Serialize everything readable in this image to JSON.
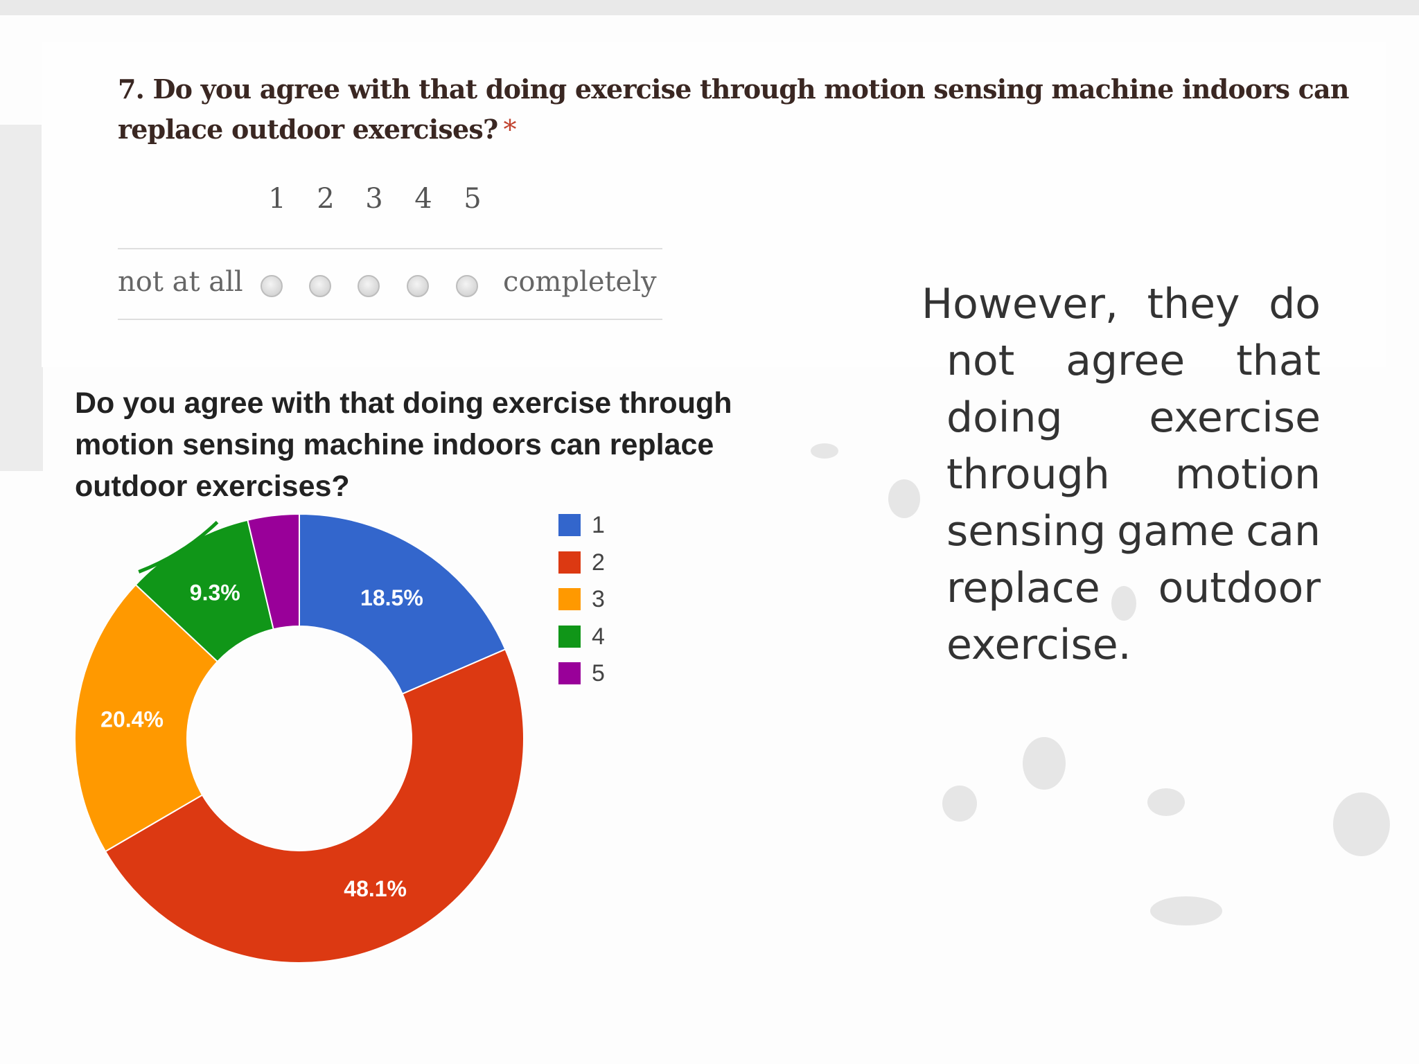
{
  "form": {
    "question": "7. Do you agree with that doing exercise through motion sensing machine indoors can replace outdoor exercises?",
    "required_marker": "*",
    "scale_numbers": [
      "1",
      "2",
      "3",
      "4",
      "5"
    ],
    "low_label": "not at all",
    "high_label": "completely"
  },
  "chart_data": {
    "type": "pie",
    "title": "Do you agree with that doing exercise through motion sensing machine indoors can replace outdoor exercises?",
    "legend_position": "right",
    "categories": [
      "1",
      "2",
      "3",
      "4",
      "5"
    ],
    "values": [
      18.5,
      48.1,
      20.4,
      9.3,
      3.7
    ],
    "value_labels": [
      "18.5%",
      "48.1%",
      "20.4%",
      "9.3%",
      ""
    ],
    "colors": [
      "#3366cc",
      "#dc3912",
      "#ff9900",
      "#109618",
      "#990099"
    ],
    "donut": true
  },
  "comment": {
    "lines": [
      [
        "However,",
        "they",
        "do"
      ],
      [
        "not",
        "agree",
        "that"
      ],
      [
        "doing",
        "exercise"
      ],
      [
        "through",
        "motion"
      ],
      [
        "sensing",
        "game",
        "can"
      ],
      [
        "replace",
        "outdoor"
      ],
      [
        "exercise."
      ]
    ]
  }
}
